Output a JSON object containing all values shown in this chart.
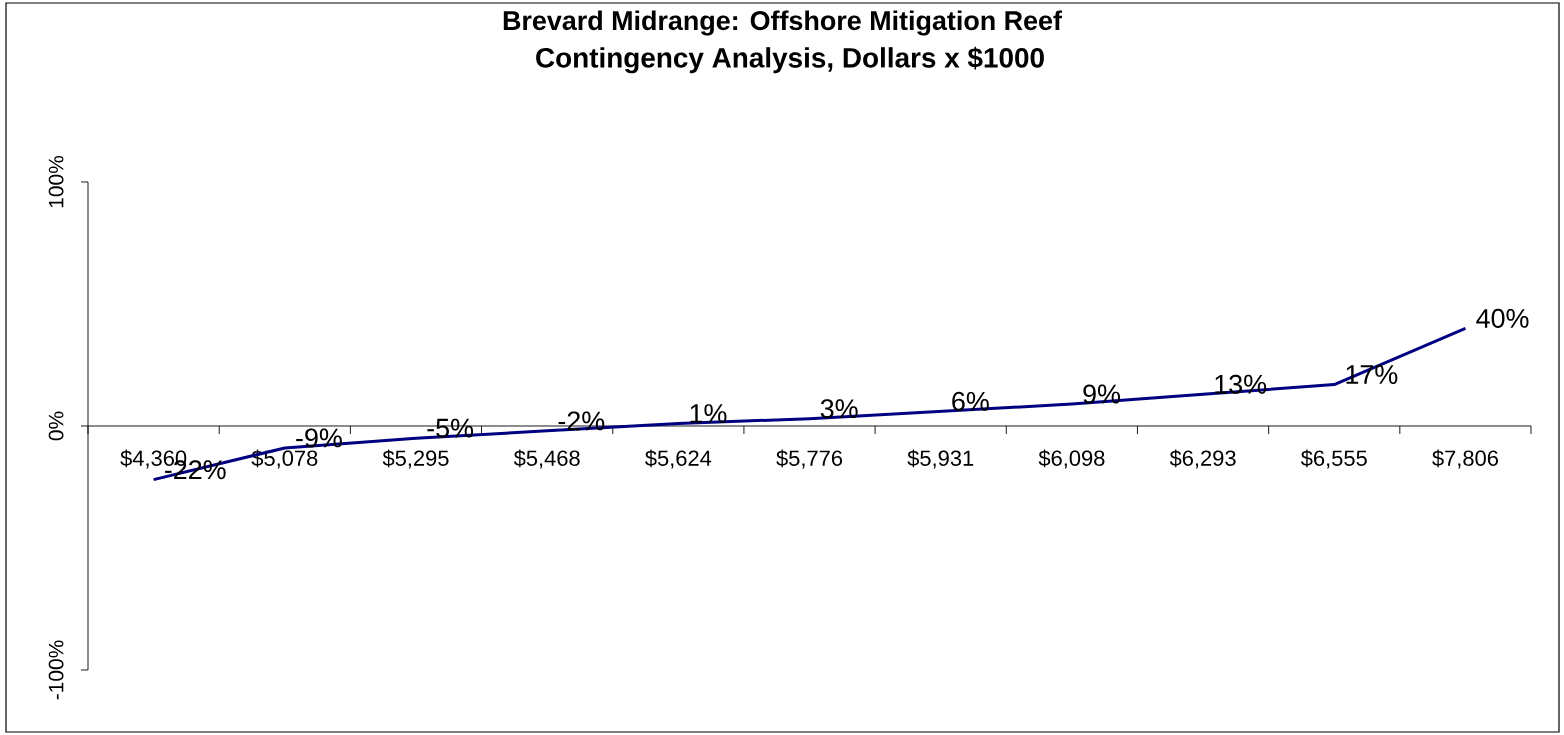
{
  "chart_data": {
    "type": "line",
    "title": "Brevard Midrange: Offshore Mitigation Reef",
    "subtitle": "Contingency Analysis, Dollars x $1000",
    "categories": [
      "$4,360",
      "$5,078",
      "$5,295",
      "$5,468",
      "$5,624",
      "$5,776",
      "$5,931",
      "$6,098",
      "$6,293",
      "$6,555",
      "$7,806"
    ],
    "series": [
      {
        "color": "#000080",
        "values": [
          -22,
          -9,
          -5,
          -2,
          1,
          3,
          6,
          9,
          13,
          17,
          40
        ],
        "value_labels": [
          "-22%",
          "-9%",
          "-5%",
          "-2%",
          "1%",
          "3%",
          "6%",
          "9%",
          "13%",
          "17%",
          "40%"
        ]
      }
    ],
    "ylim": [
      -100,
      100
    ],
    "yticks": [
      {
        "value": -100,
        "label": "-100%"
      },
      {
        "value": 0,
        "label": "0%"
      },
      {
        "value": 100,
        "label": "100%"
      }
    ],
    "marker": "none",
    "line_style": "solid"
  }
}
